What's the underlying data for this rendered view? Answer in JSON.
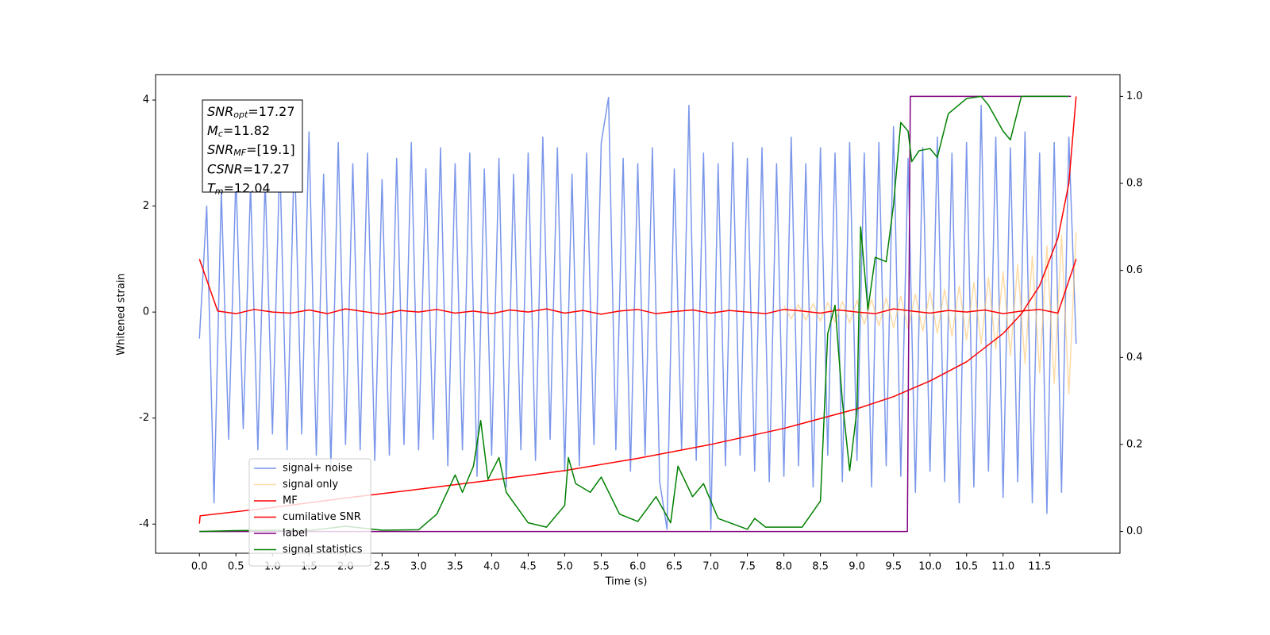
{
  "chart_data": {
    "type": "line",
    "xlabel": "Time (s)",
    "ylabel": "Whitened strain",
    "xlim": [
      -0.6,
      12.6
    ],
    "ylim": [
      -4.55,
      4.48
    ],
    "y2lim": [
      -0.05,
      1.05
    ],
    "xticks": [
      {
        "value": 0,
        "label": "0.0"
      },
      0.5,
      {
        "value": 1,
        "label": "1.0"
      },
      1.5,
      {
        "value": 2,
        "label": "2.0"
      },
      2.5,
      {
        "value": 3,
        "label": "3.0"
      },
      3.5,
      {
        "value": 4,
        "label": "4.0"
      },
      4.5,
      {
        "value": 5,
        "label": "5.0"
      },
      5.5,
      {
        "value": 6,
        "label": "6.0"
      },
      6.5,
      {
        "value": 7,
        "label": "7.0"
      },
      7.5,
      {
        "value": 8,
        "label": "8.0"
      },
      8.5,
      {
        "value": 9,
        "label": "9.0"
      },
      9.5,
      {
        "value": 10,
        "label": "10.0"
      },
      10.5,
      {
        "value": 11,
        "label": "11.0"
      },
      11.5
    ],
    "yticks": [
      -4,
      -2,
      0,
      2,
      4
    ],
    "y2ticks": [
      {
        "value": 0,
        "label": "0.0"
      },
      0.2,
      0.4,
      0.6,
      0.8,
      {
        "value": 1,
        "label": "1.0"
      }
    ],
    "legend_loc": "lower left",
    "textbox": [
      {
        "symbol": "SNR",
        "sub": "opt",
        "text": "=17.27"
      },
      {
        "symbol": "M",
        "sub": "c",
        "text": "=11.82"
      },
      {
        "symbol": "SNR",
        "sub": "MF",
        "text": "=[19.1]"
      },
      {
        "symbol": "CSNR",
        "sub": "",
        "text": "=17.27"
      },
      {
        "symbol": "T",
        "sub": "m",
        "text": "=12.04"
      }
    ],
    "series": [
      {
        "name": "signal+ noise",
        "color": "#4169e1",
        "alpha": 0.7,
        "x": [
          0,
          0.1,
          0.2,
          0.3,
          0.4,
          0.5,
          0.6,
          0.7,
          0.8,
          0.9,
          1,
          1.1,
          1.2,
          1.3,
          1.4,
          1.5,
          1.6,
          1.7,
          1.8,
          1.9,
          2,
          2.1,
          2.2,
          2.3,
          2.4,
          2.5,
          2.6,
          2.7,
          2.8,
          2.9,
          3,
          3.1,
          3.2,
          3.3,
          3.4,
          3.5,
          3.6,
          3.7,
          3.8,
          3.9,
          4,
          4.1,
          4.2,
          4.3,
          4.4,
          4.5,
          4.6,
          4.7,
          4.8,
          4.9,
          5,
          5.1,
          5.2,
          5.3,
          5.4,
          5.5,
          5.6,
          5.7,
          5.8,
          5.9,
          6,
          6.1,
          6.2,
          6.3,
          6.4,
          6.5,
          6.6,
          6.7,
          6.8,
          6.9,
          7,
          7.1,
          7.2,
          7.3,
          7.4,
          7.5,
          7.6,
          7.7,
          7.8,
          7.9,
          8,
          8.1,
          8.2,
          8.3,
          8.4,
          8.5,
          8.6,
          8.7,
          8.8,
          8.9,
          9,
          9.1,
          9.2,
          9.3,
          9.4,
          9.5,
          9.6,
          9.7,
          9.8,
          9.9,
          10,
          10.1,
          10.2,
          10.3,
          10.4,
          10.5,
          10.6,
          10.7,
          10.8,
          10.9,
          11,
          11.1,
          11.2,
          11.3,
          11.4,
          11.5,
          11.6,
          11.7,
          11.8,
          11.9,
          12
        ],
        "values": [
          -0.5,
          2.0,
          -3.6,
          2.3,
          -2.4,
          2.6,
          -2.2,
          2.4,
          -2.6,
          2.5,
          -2.3,
          2.9,
          -2.6,
          3.1,
          -2.3,
          3.4,
          -2.7,
          2.6,
          -2.9,
          3.2,
          -2.5,
          2.8,
          -2.6,
          3.0,
          -2.8,
          2.5,
          -2.7,
          2.9,
          -2.5,
          3.2,
          -2.6,
          2.7,
          -2.4,
          3.1,
          -2.9,
          2.8,
          -2.6,
          3.0,
          -3.1,
          2.7,
          -2.7,
          2.9,
          -3.3,
          2.6,
          -2.6,
          3.0,
          -2.8,
          3.3,
          -2.4,
          3.1,
          -3.0,
          2.6,
          -2.9,
          3.0,
          -2.5,
          3.2,
          4.05,
          -2.6,
          2.9,
          -3.0,
          2.8,
          -2.7,
          3.1,
          -3.2,
          -4.1,
          2.7,
          -2.6,
          3.9,
          -2.8,
          3.0,
          -4.1,
          2.8,
          -2.9,
          3.2,
          -2.7,
          2.9,
          -3.0,
          3.1,
          -3.2,
          2.8,
          -3.1,
          3.3,
          -2.9,
          2.8,
          -3.3,
          3.1,
          -2.7,
          3.0,
          -3.2,
          3.2,
          -2.8,
          3.0,
          -3.3,
          3.2,
          -2.9,
          3.5,
          -3.1,
          2.9,
          -3.4,
          3.1,
          -3.0,
          3.3,
          -3.2,
          3.0,
          -3.6,
          3.2,
          -3.3,
          3.9,
          -3.0,
          3.3,
          -3.5,
          3.1,
          -3.2,
          3.4,
          -3.6,
          3.0,
          -3.8,
          3.2,
          -3.4,
          3.3,
          -0.6
        ]
      },
      {
        "name": "signal only",
        "color": "#fbc56b",
        "alpha": 0.6,
        "x": [
          8,
          8.1,
          8.2,
          8.3,
          8.4,
          8.5,
          8.6,
          8.7,
          8.8,
          8.9,
          9,
          9.1,
          9.2,
          9.3,
          9.4,
          9.5,
          9.6,
          9.7,
          9.8,
          9.9,
          10,
          10.1,
          10.2,
          10.3,
          10.4,
          10.5,
          10.6,
          10.7,
          10.8,
          10.9,
          11,
          11.1,
          11.2,
          11.3,
          11.4,
          11.5,
          11.6,
          11.7,
          11.8,
          11.9,
          12
        ],
        "values": [
          0.12,
          -0.13,
          0.14,
          -0.15,
          0.16,
          -0.17,
          0.18,
          -0.19,
          0.2,
          -0.21,
          0.22,
          -0.23,
          0.24,
          -0.26,
          0.27,
          -0.29,
          0.3,
          -0.32,
          0.34,
          -0.36,
          0.38,
          -0.4,
          0.43,
          -0.46,
          0.49,
          -0.52,
          0.56,
          -0.6,
          0.65,
          -0.7,
          0.76,
          -0.82,
          0.89,
          -0.97,
          1.06,
          -1.15,
          1.25,
          -1.35,
          1.45,
          -1.55,
          1.5
        ]
      },
      {
        "name": "MF",
        "color": "#ff0000",
        "alpha": 1,
        "x": [
          0,
          0.25,
          0.5,
          0.75,
          1,
          1.25,
          1.5,
          1.75,
          2,
          2.25,
          2.5,
          2.75,
          3,
          3.25,
          3.5,
          3.75,
          4,
          4.25,
          4.5,
          4.75,
          5,
          5.25,
          5.5,
          5.75,
          6,
          6.25,
          6.5,
          6.75,
          7,
          7.25,
          7.5,
          7.75,
          8,
          8.25,
          8.5,
          8.75,
          9,
          9.25,
          9.5,
          9.75,
          10,
          10.25,
          10.5,
          10.75,
          11,
          11.25,
          11.5,
          11.75,
          12
        ],
        "values": [
          1.0,
          0.02,
          -0.03,
          0.05,
          0.0,
          -0.02,
          0.04,
          -0.03,
          0.06,
          0.01,
          -0.04,
          0.03,
          0.0,
          0.05,
          -0.02,
          0.02,
          -0.03,
          0.04,
          0.0,
          0.06,
          -0.02,
          0.03,
          -0.04,
          0.02,
          0.05,
          -0.03,
          0.01,
          0.04,
          -0.02,
          0.03,
          0.0,
          -0.03,
          0.05,
          0.02,
          -0.02,
          0.04,
          0.0,
          -0.03,
          0.06,
          0.02,
          -0.02,
          0.03,
          0.0,
          0.04,
          -0.03,
          0.02,
          0.05,
          -0.02,
          1.0
        ]
      },
      {
        "name": "cumilative SNR",
        "color": "#ff0000",
        "alpha": 1,
        "axis": "y2",
        "x": [
          0,
          0.01,
          1,
          2,
          3,
          4,
          5,
          6,
          7,
          8,
          9,
          9.5,
          10,
          10.5,
          11,
          11.25,
          11.5,
          11.75,
          11.9,
          12
        ],
        "values": [
          0.018,
          0.036,
          0.055,
          0.077,
          0.097,
          0.118,
          0.14,
          0.168,
          0.2,
          0.237,
          0.282,
          0.31,
          0.346,
          0.39,
          0.455,
          0.5,
          0.565,
          0.674,
          0.8,
          1.0
        ]
      },
      {
        "name": "label",
        "color": "#800080",
        "alpha": 1,
        "axis": "y2",
        "x": [
          0,
          9.69,
          9.73,
          11.93
        ],
        "values": [
          0,
          0,
          1,
          1
        ]
      },
      {
        "name": "signal statistics",
        "color": "#008000",
        "alpha": 1,
        "axis": "y2",
        "x": [
          0,
          0.5,
          1,
          1.5,
          2,
          2.5,
          3,
          3.25,
          3.5,
          3.6,
          3.75,
          3.85,
          3.95,
          4.1,
          4.2,
          4.5,
          4.75,
          5.0,
          5.05,
          5.15,
          5.35,
          5.5,
          5.75,
          6.0,
          6.25,
          6.45,
          6.55,
          6.75,
          6.9,
          7.1,
          7.5,
          7.6,
          7.75,
          8.0,
          8.25,
          8.5,
          8.6,
          8.7,
          8.8,
          8.9,
          9.0,
          9.05,
          9.15,
          9.25,
          9.4,
          9.5,
          9.6,
          9.7,
          9.75,
          9.85,
          10.0,
          10.1,
          10.25,
          10.5,
          10.7,
          10.8,
          11.0,
          11.1,
          11.25,
          11.5,
          11.9
        ],
        "values": [
          0,
          0.002,
          0.003,
          0.002,
          0.012,
          0.003,
          0.004,
          0.04,
          0.13,
          0.09,
          0.15,
          0.255,
          0.12,
          0.17,
          0.09,
          0.02,
          0.01,
          0.06,
          0.17,
          0.11,
          0.09,
          0.125,
          0.04,
          0.023,
          0.08,
          0.02,
          0.15,
          0.08,
          0.11,
          0.03,
          0.005,
          0.03,
          0.01,
          0.01,
          0.01,
          0.07,
          0.455,
          0.52,
          0.3,
          0.14,
          0.28,
          0.7,
          0.51,
          0.63,
          0.62,
          0.75,
          0.94,
          0.92,
          0.85,
          0.875,
          0.88,
          0.86,
          0.96,
          0.995,
          1.0,
          0.98,
          0.92,
          0.9,
          1.0,
          1.0,
          1.0
        ]
      }
    ]
  }
}
